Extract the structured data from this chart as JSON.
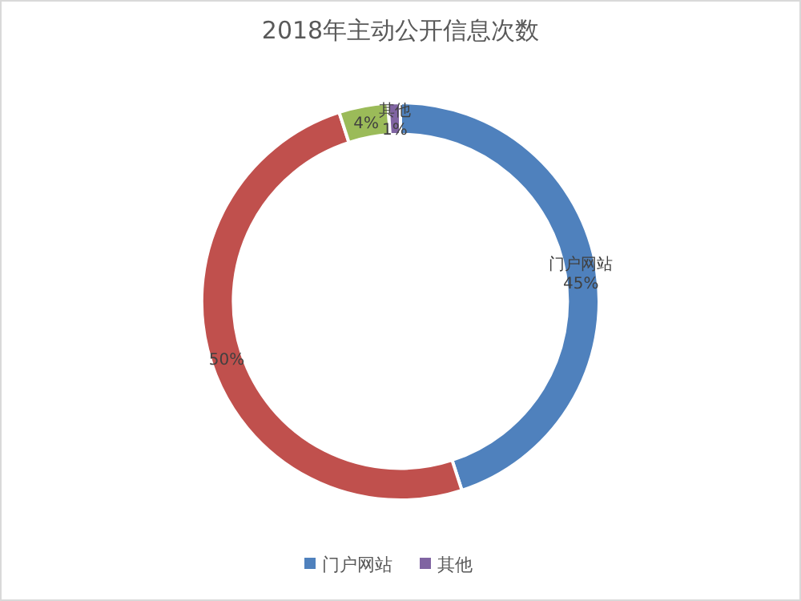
{
  "chart_data": {
    "type": "donut",
    "title": "2018年主动公开信息次数",
    "categories": [
      "门户网站",
      null,
      null,
      "其他"
    ],
    "values": [
      45,
      50,
      4,
      1
    ],
    "value_labels": [
      "45%",
      "50%",
      "4%",
      "1%"
    ],
    "colors": [
      "#4f81bd",
      "#c0504d",
      "#9bbb59",
      "#8064a2"
    ],
    "legend": "bottom"
  }
}
